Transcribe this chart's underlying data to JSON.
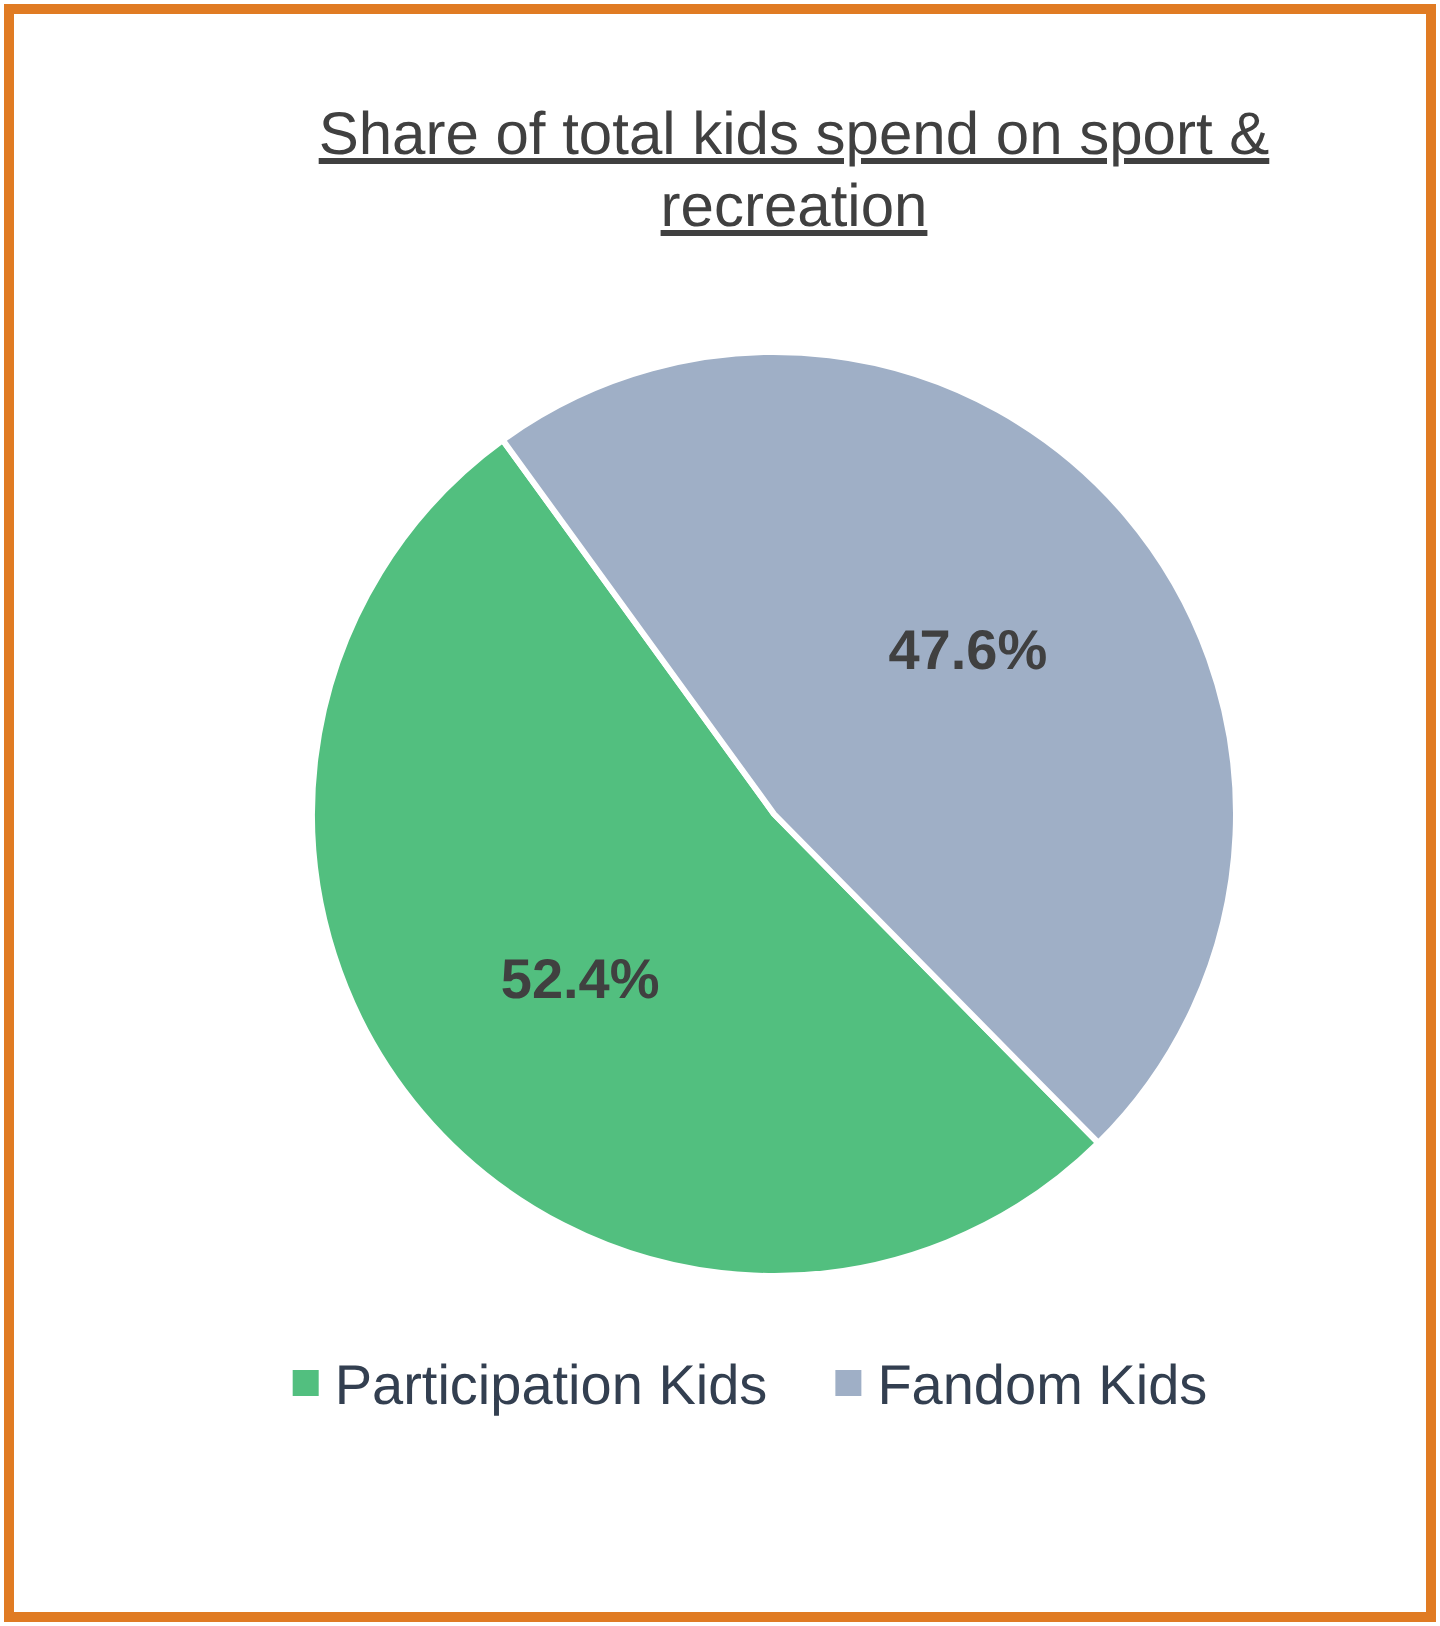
{
  "chart_data": {
    "type": "pie",
    "title": "Share of total kids spend on sport & recreation",
    "categories": [
      "Participation Kids",
      "Fandom Kids"
    ],
    "values": [
      52.4,
      47.6
    ],
    "colors": [
      "#52bf7f",
      "#9fafc6"
    ],
    "value_labels": [
      "52.4%",
      "47.6%"
    ],
    "legend": "bottom"
  }
}
